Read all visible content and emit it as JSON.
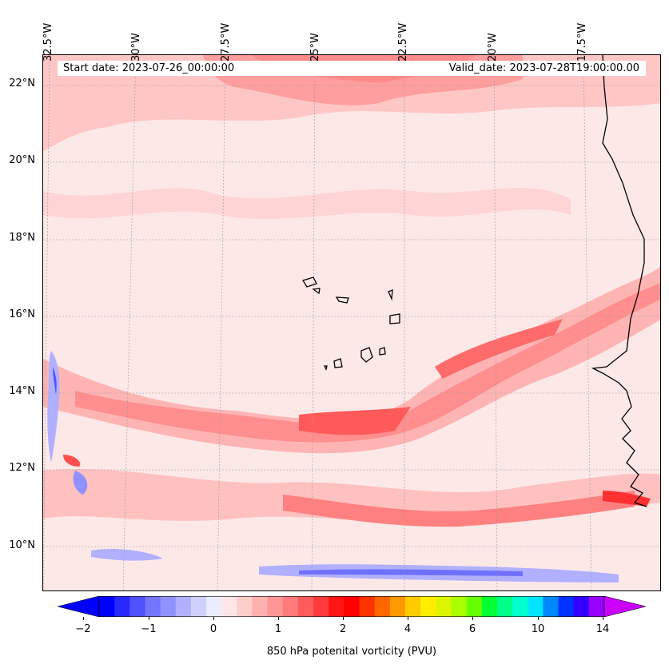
{
  "header": {
    "start_date": "Start date: 2023-07-26_00:00:00",
    "valid_date": "Valid_date: 2023-07-28T19:00:00.00"
  },
  "map": {
    "lon_labels": [
      "32.5°W",
      "30°W",
      "27.5°W",
      "25°W",
      "22.5°W",
      "20°W",
      "17.5°W"
    ],
    "lat_labels": [
      "22°N",
      "20°N",
      "18°N",
      "16°N",
      "14°N",
      "12°N",
      "10°N"
    ],
    "features": [
      "Cape Verde islands",
      "West African coastline"
    ]
  },
  "colorbar": {
    "label": "850 hPa potenital vorticity (PVU)",
    "ticks": [
      "−2",
      "−1",
      "0",
      "1",
      "2",
      "4",
      "6",
      "10",
      "14"
    ],
    "colors": [
      "#0000ff",
      "#2929ff",
      "#5050ff",
      "#7575ff",
      "#9090ff",
      "#b0b0ff",
      "#d0d0ff",
      "#ececff",
      "#ffe6e6",
      "#ffcccc",
      "#ffb0b0",
      "#ff9696",
      "#ff7a7a",
      "#ff5c5c",
      "#ff3b3b",
      "#ff1414",
      "#ff0000",
      "#ff3300",
      "#ff6600",
      "#ff9900",
      "#ffcc00",
      "#ffee00",
      "#ddf500",
      "#aaff00",
      "#66ff00",
      "#00ff33",
      "#00ff88",
      "#00ffcc",
      "#00e5ff",
      "#0088ff",
      "#0033ff",
      "#3300ff",
      "#9900ff"
    ],
    "extend_low_color": "#0000ff",
    "extend_high_color": "#cc00ff"
  }
}
